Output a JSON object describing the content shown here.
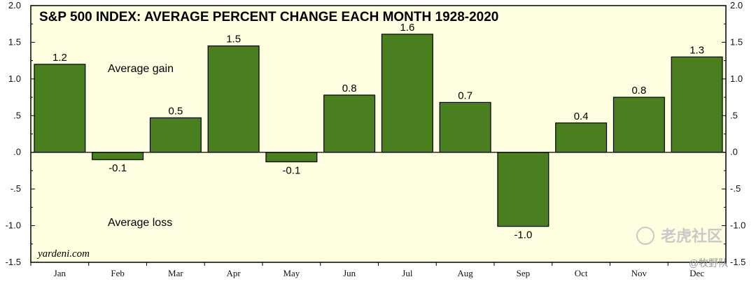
{
  "chart_data": {
    "type": "bar",
    "title": "S&P 500 INDEX: AVERAGE PERCENT CHANGE EACH MONTH 1928-2020",
    "categories": [
      "Jan",
      "Feb",
      "Mar",
      "Apr",
      "May",
      "Jun",
      "Jul",
      "Aug",
      "Sep",
      "Oct",
      "Nov",
      "Dec"
    ],
    "values": [
      1.2,
      -0.1,
      0.47,
      1.45,
      -0.13,
      0.78,
      1.61,
      0.68,
      -1.01,
      0.4,
      0.75,
      1.3
    ],
    "data_labels": [
      "1.2",
      "-0.1",
      "0.5",
      "1.5",
      "-0.1",
      "0.8",
      "1.6",
      "0.7",
      "-1.0",
      "0.4",
      "0.8",
      "1.3"
    ],
    "ylim": [
      -1.5,
      2.0
    ],
    "yticks": [
      2.0,
      1.5,
      1.0,
      0.5,
      0.0,
      -0.5,
      -1.0,
      -1.5
    ],
    "ytick_labels": [
      "2.0",
      "1.5",
      "1.0",
      ".5",
      ".0",
      "-.5",
      "-1.0",
      "-1.5"
    ],
    "xlabel": "",
    "ylabel": "",
    "grid": false,
    "bar_color": "#4a7f1f",
    "plot_background": "#fefee0",
    "annotations": {
      "gain": "Average gain",
      "loss": "Average loss"
    },
    "credit": "yardeni.com"
  },
  "watermark": {
    "main": "老虎社区",
    "sub": "@牧野队"
  }
}
